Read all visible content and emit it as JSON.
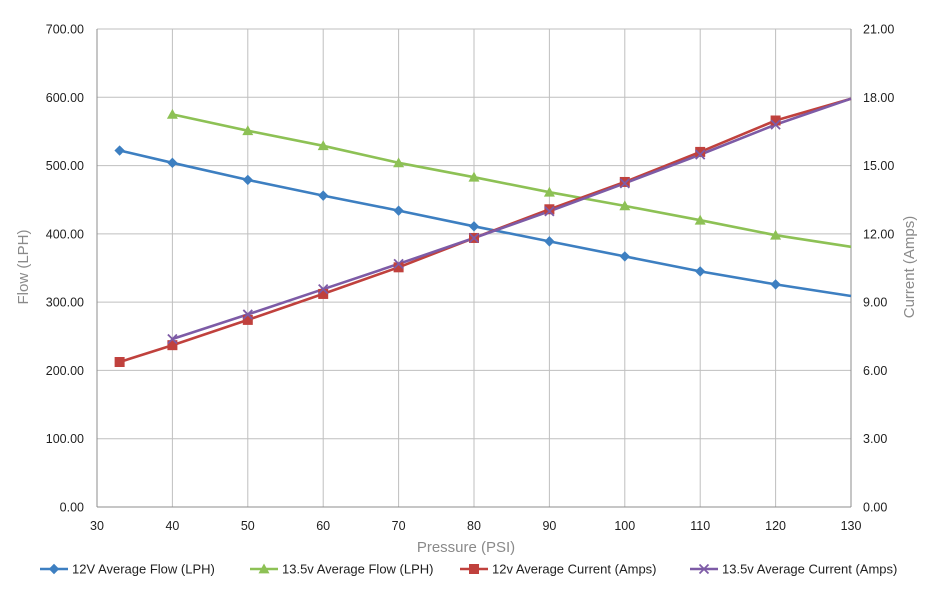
{
  "chart_data": {
    "type": "line",
    "title": "",
    "xlabel": "Pressure (PSI)",
    "ylabel": "Flow (LPH)",
    "y2label": "Current (Amps)",
    "xlim": [
      30,
      130
    ],
    "ylim": [
      0,
      700
    ],
    "y2lim": [
      0,
      21
    ],
    "x_ticks": [
      "30",
      "40",
      "50",
      "60",
      "70",
      "80",
      "90",
      "100",
      "110",
      "120",
      "130"
    ],
    "y_ticks": [
      "0.00",
      "100.00",
      "200.00",
      "300.00",
      "400.00",
      "500.00",
      "600.00",
      "700.00"
    ],
    "y2_ticks": [
      "0.00",
      "3.00",
      "6.00",
      "9.00",
      "12.00",
      "15.00",
      "18.00",
      "21.00"
    ],
    "grid": true,
    "legend_position": "bottom",
    "series": [
      {
        "name": "12V Average Flow (LPH)",
        "axis": "left",
        "color": "#3d7fc1",
        "marker": "diamond",
        "x": [
          33,
          40,
          50,
          60,
          70,
          80,
          90,
          100,
          110,
          120,
          130
        ],
        "values": [
          522,
          504,
          479,
          456,
          434,
          411,
          389,
          367,
          345,
          326,
          309
        ],
        "marker_x": [
          33,
          40,
          50,
          60,
          70,
          80,
          90,
          100,
          110,
          120
        ]
      },
      {
        "name": "13.5v Average Flow (LPH)",
        "axis": "left",
        "color": "#8dc155",
        "marker": "triangle",
        "x": [
          40,
          50,
          60,
          70,
          80,
          90,
          100,
          110,
          120,
          130
        ],
        "values": [
          575,
          551,
          529,
          504,
          483,
          461,
          441,
          420,
          398,
          381
        ],
        "marker_x": [
          40,
          50,
          60,
          70,
          80,
          90,
          100,
          110,
          120
        ]
      },
      {
        "name": "12v Average Current (Amps)",
        "axis": "right",
        "color": "#c0413d",
        "marker": "square",
        "x": [
          33,
          40,
          50,
          60,
          70,
          80,
          90,
          100,
          110,
          120,
          130
        ],
        "values": [
          6.37,
          7.11,
          8.22,
          9.36,
          10.53,
          11.82,
          13.08,
          14.28,
          15.6,
          16.98,
          17.94
        ],
        "marker_x": [
          33,
          40,
          50,
          60,
          70,
          80,
          90,
          100,
          110,
          120
        ]
      },
      {
        "name": "13.5v Average Current (Amps)",
        "axis": "right",
        "color": "#7d5ba6",
        "marker": "x",
        "x": [
          40,
          50,
          60,
          70,
          80,
          90,
          100,
          110,
          120,
          130
        ],
        "values": [
          7.38,
          8.46,
          9.57,
          10.68,
          11.82,
          12.99,
          14.22,
          15.48,
          16.8,
          17.94
        ],
        "marker_x": [
          40,
          50,
          60,
          70,
          80,
          90,
          100,
          110,
          120
        ]
      }
    ]
  }
}
